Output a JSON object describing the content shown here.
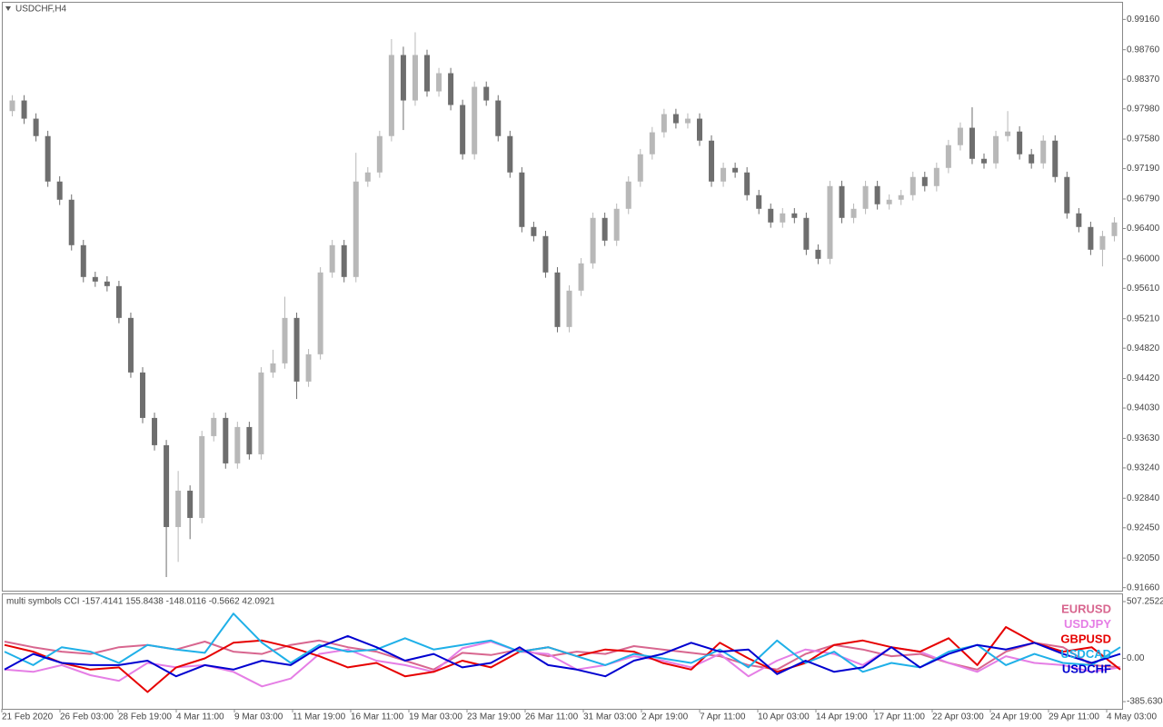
{
  "chart_data": [
    {
      "type": "candlestick",
      "title": "USDCHF,H4",
      "open": [
        0.9795,
        0.9809,
        0.9785,
        0.9762,
        0.9702,
        0.9678,
        0.9618,
        0.9576,
        0.957,
        0.9564,
        0.9522,
        0.945,
        0.939,
        0.9354,
        0.9246,
        0.9294,
        0.9258,
        0.9366,
        0.939,
        0.933,
        0.9378,
        0.9342,
        0.945,
        0.9462,
        0.9522,
        0.9438,
        0.9474,
        0.9582,
        0.9618,
        0.9576,
        0.9702,
        0.9714,
        0.9762,
        0.9869,
        0.9809,
        0.9869,
        0.9821,
        0.9845,
        0.9803,
        0.9738,
        0.9827,
        0.9809,
        0.9762,
        0.9714,
        0.9642,
        0.963,
        0.9582,
        0.951,
        0.9558,
        0.9594,
        0.9654,
        0.9624,
        0.9666,
        0.9702,
        0.9738,
        0.9767,
        0.9791,
        0.9779,
        0.9785,
        0.9756,
        0.9702,
        0.972,
        0.9714,
        0.9684,
        0.9666,
        0.9648,
        0.966,
        0.9654,
        0.9612,
        0.96,
        0.9696,
        0.9654,
        0.9666,
        0.9696,
        0.9672,
        0.9678,
        0.9684,
        0.9708,
        0.9696,
        0.972,
        0.975,
        0.9773,
        0.9732,
        0.9726,
        0.9762,
        0.9768,
        0.9738,
        0.9726,
        0.9756,
        0.9708,
        0.966,
        0.9642,
        0.9612,
        0.963
      ],
      "high": [
        0.9816,
        0.9816,
        0.9792,
        0.9769,
        0.9709,
        0.9685,
        0.9625,
        0.9583,
        0.9577,
        0.9571,
        0.9529,
        0.9457,
        0.9397,
        0.9361,
        0.932,
        0.9301,
        0.9373,
        0.9397,
        0.9397,
        0.9385,
        0.9385,
        0.9457,
        0.948,
        0.955,
        0.9529,
        0.9481,
        0.9589,
        0.9625,
        0.9625,
        0.974,
        0.9721,
        0.9769,
        0.989,
        0.988,
        0.9899,
        0.9876,
        0.9852,
        0.9852,
        0.981,
        0.9834,
        0.9834,
        0.9816,
        0.9769,
        0.9721,
        0.9649,
        0.9637,
        0.9589,
        0.9565,
        0.9601,
        0.9661,
        0.9661,
        0.9673,
        0.9709,
        0.9745,
        0.9774,
        0.9798,
        0.9798,
        0.9792,
        0.9792,
        0.9763,
        0.9727,
        0.9727,
        0.9721,
        0.9691,
        0.9673,
        0.9667,
        0.9667,
        0.9661,
        0.9619,
        0.9703,
        0.9703,
        0.9673,
        0.9703,
        0.9703,
        0.9685,
        0.9691,
        0.9715,
        0.9715,
        0.9727,
        0.9757,
        0.978,
        0.98,
        0.9739,
        0.9769,
        0.9795,
        0.9775,
        0.9745,
        0.9763,
        0.9763,
        0.9715,
        0.9667,
        0.9649,
        0.9637,
        0.9655
      ],
      "low": [
        0.9788,
        0.9778,
        0.9755,
        0.9695,
        0.9671,
        0.9611,
        0.9569,
        0.9563,
        0.9557,
        0.9515,
        0.9443,
        0.9383,
        0.9347,
        0.918,
        0.92,
        0.923,
        0.9251,
        0.9359,
        0.9323,
        0.9323,
        0.9335,
        0.9335,
        0.9443,
        0.9455,
        0.9415,
        0.9431,
        0.9467,
        0.9575,
        0.9569,
        0.9569,
        0.9695,
        0.9707,
        0.9755,
        0.977,
        0.9802,
        0.9814,
        0.9814,
        0.9796,
        0.9731,
        0.9731,
        0.9802,
        0.9755,
        0.9707,
        0.9635,
        0.9623,
        0.9575,
        0.9503,
        0.9503,
        0.9551,
        0.9587,
        0.9617,
        0.9617,
        0.9659,
        0.9695,
        0.9731,
        0.976,
        0.9772,
        0.9772,
        0.9749,
        0.9695,
        0.9695,
        0.9707,
        0.9677,
        0.9659,
        0.9641,
        0.9641,
        0.9647,
        0.9605,
        0.9593,
        0.9593,
        0.9647,
        0.9647,
        0.9659,
        0.9665,
        0.9665,
        0.9671,
        0.9677,
        0.9689,
        0.9689,
        0.9713,
        0.9743,
        0.9725,
        0.9719,
        0.9719,
        0.9755,
        0.9731,
        0.9719,
        0.9719,
        0.9701,
        0.9653,
        0.9635,
        0.9605,
        0.959,
        0.9623
      ],
      "close": [
        0.9809,
        0.9785,
        0.9762,
        0.9702,
        0.9678,
        0.9618,
        0.9576,
        0.957,
        0.9564,
        0.9522,
        0.945,
        0.939,
        0.9354,
        0.9246,
        0.9294,
        0.9258,
        0.9366,
        0.939,
        0.933,
        0.9378,
        0.9342,
        0.945,
        0.9462,
        0.9522,
        0.9438,
        0.9474,
        0.9582,
        0.9618,
        0.9576,
        0.9702,
        0.9714,
        0.9762,
        0.9869,
        0.9809,
        0.9869,
        0.9821,
        0.9845,
        0.9803,
        0.9738,
        0.9827,
        0.9809,
        0.9762,
        0.9714,
        0.9642,
        0.963,
        0.9582,
        0.951,
        0.9558,
        0.9594,
        0.9654,
        0.9624,
        0.9666,
        0.9702,
        0.9738,
        0.9767,
        0.9791,
        0.9779,
        0.9785,
        0.9756,
        0.9702,
        0.972,
        0.9714,
        0.9684,
        0.9666,
        0.9648,
        0.966,
        0.9654,
        0.9612,
        0.96,
        0.9696,
        0.9654,
        0.9666,
        0.9696,
        0.9672,
        0.9678,
        0.9684,
        0.9708,
        0.9696,
        0.972,
        0.975,
        0.9773,
        0.9732,
        0.9726,
        0.9762,
        0.9768,
        0.9738,
        0.9726,
        0.9756,
        0.9708,
        0.966,
        0.9642,
        0.9612,
        0.963,
        0.9648
      ],
      "up_color": "#b8b8b8",
      "down_color": "#6e6e6e",
      "ylim": [
        0.9162,
        0.9938
      ],
      "yticks": [
        {
          "value": 0.9916,
          "label": "0.99160"
        },
        {
          "value": 0.9876,
          "label": "0.98760"
        },
        {
          "value": 0.9837,
          "label": "0.98370"
        },
        {
          "value": 0.9798,
          "label": "0.97980"
        },
        {
          "value": 0.9758,
          "label": "0.97580"
        },
        {
          "value": 0.9719,
          "label": "0.97190"
        },
        {
          "value": 0.9679,
          "label": "0.96790"
        },
        {
          "value": 0.964,
          "label": "0.96400"
        },
        {
          "value": 0.96,
          "label": "0.96000"
        },
        {
          "value": 0.9561,
          "label": "0.95610"
        },
        {
          "value": 0.9521,
          "label": "0.95210"
        },
        {
          "value": 0.9482,
          "label": "0.94820"
        },
        {
          "value": 0.9442,
          "label": "0.94420"
        },
        {
          "value": 0.9403,
          "label": "0.94030"
        },
        {
          "value": 0.9363,
          "label": "0.93630"
        },
        {
          "value": 0.9324,
          "label": "0.93240"
        },
        {
          "value": 0.9284,
          "label": "0.92840"
        },
        {
          "value": 0.9245,
          "label": "0.92450"
        },
        {
          "value": 0.9205,
          "label": "0.92050"
        },
        {
          "value": 0.9166,
          "label": "0.91660"
        }
      ],
      "x_labels": [
        "21 Feb 2020",
        "26 Feb 03:00",
        "28 Feb 19:00",
        "4 Mar 11:00",
        "9 Mar 03:00",
        "11 Mar 19:00",
        "16 Mar 11:00",
        "19 Mar 03:00",
        "23 Mar 19:00",
        "26 Mar 11:00",
        "31 Mar 03:00",
        "2 Apr 19:00",
        "7 Apr 11:00",
        "10 Apr 03:00",
        "14 Apr 19:00",
        "17 Apr 11:00",
        "22 Apr 03:00",
        "24 Apr 19:00",
        "29 Apr 11:00",
        "4 May 03:00"
      ]
    },
    {
      "type": "line",
      "title": "multi symbols CCI -157.4141 155.8438 -148.0116 -0.5662 42.0921",
      "legend": "top-right",
      "ylim": [
        -450,
        572
      ],
      "yticks": [
        507.2522,
        {
          "value": 0,
          "label": "0.00"
        },
        -385.6304
      ],
      "series": [
        {
          "name": "EURUSD",
          "color": "#d8668f",
          "values": [
            150,
            100,
            60,
            40,
            100,
            120,
            80,
            150,
            60,
            40,
            120,
            160,
            100,
            60,
            -20,
            -100,
            50,
            30,
            80,
            20,
            60,
            40,
            110,
            80,
            50,
            20,
            -60,
            -100,
            40,
            120,
            80,
            20,
            40,
            -40,
            -100,
            60,
            140,
            100,
            -60,
            -80
          ]
        },
        {
          "name": "USDJPY",
          "color": "#e57ee5",
          "values": [
            -100,
            -120,
            -60,
            -150,
            -200,
            -40,
            -80,
            -60,
            -120,
            -250,
            -180,
            40,
            80,
            -20,
            -60,
            -120,
            90,
            150,
            60,
            40,
            -100,
            -60,
            20,
            -20,
            -80,
            40,
            -160,
            -20,
            80,
            40,
            -60,
            100,
            60,
            -40,
            -120,
            20,
            -40,
            -60,
            -120,
            -80
          ]
        },
        {
          "name": "GBPUSD",
          "color": "#e60000",
          "values": [
            120,
            60,
            -40,
            -100,
            -80,
            -300,
            -80,
            0,
            140,
            160,
            100,
            20,
            -80,
            -40,
            -160,
            -120,
            -20,
            -80,
            60,
            100,
            20,
            80,
            60,
            -40,
            -100,
            140,
            0,
            -120,
            -40,
            120,
            160,
            100,
            60,
            180,
            -60,
            280,
            140,
            60,
            100,
            -100
          ]
        },
        {
          "name": "USDCAD",
          "color": "#1fb0e8",
          "values": [
            60,
            -60,
            100,
            60,
            -40,
            120,
            80,
            50,
            400,
            140,
            -40,
            120,
            60,
            80,
            180,
            80,
            120,
            160,
            60,
            100,
            20,
            -60,
            40,
            0,
            -40,
            80,
            -80,
            160,
            -40,
            60,
            -120,
            -40,
            -80,
            60,
            120,
            -60,
            40,
            -40,
            -60,
            100
          ]
        },
        {
          "name": "USDCHF",
          "color": "#0000d0",
          "values": [
            -100,
            40,
            -40,
            -60,
            -60,
            -20,
            -160,
            -60,
            -100,
            -20,
            -60,
            100,
            200,
            100,
            -20,
            40,
            -80,
            -40,
            100,
            -60,
            -100,
            -160,
            -20,
            40,
            140,
            60,
            80,
            -140,
            -20,
            -120,
            -80,
            100,
            -80,
            40,
            120,
            80,
            140,
            40,
            -40,
            40
          ]
        }
      ]
    }
  ]
}
